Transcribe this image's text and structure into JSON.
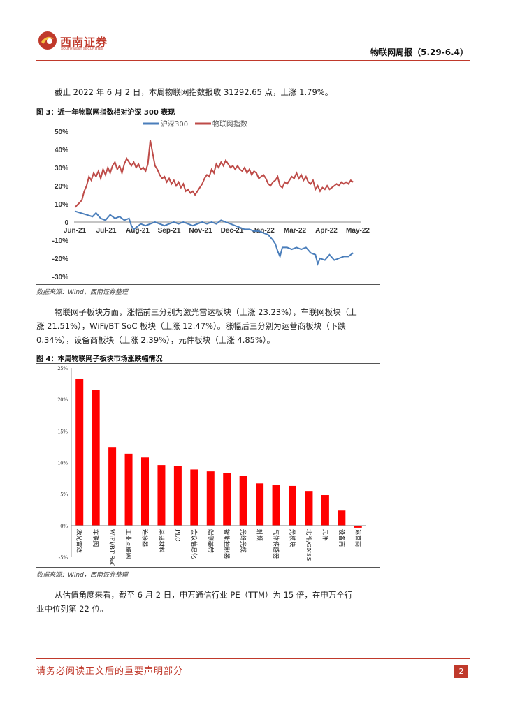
{
  "header": {
    "logo_cn": "西南证券",
    "logo_en": "SOUTHWEST SECURITIES",
    "report_title": "物联网周报（5.29-6.4）"
  },
  "body": {
    "para1": "截止 2022 年 6 月 2 日，本周物联网指数报收 31292.65 点，上涨 1.79%。",
    "fig3_title": "图 3：近一年物联网指数相对沪深 300 表现",
    "fig3_source": "数据来源：Wind，西南证券整理",
    "para2_line1": "物联网子板块方面，涨幅前三分别为激光雷达板块（上涨 23.23%），车联网板块（上",
    "para2_line2": "涨 21.51%），WiFi/BT SoC 板块（上涨 12.47%）。涨幅后三分别为运营商板块（下跌",
    "para2_line3": "0.34%），设备商板块（上涨 2.39%），元件板块（上涨 4.85%）。",
    "fig4_title": "图 4：本周物联网子板块市场涨跌幅情况",
    "fig4_source": "数据来源：Wind，西南证券整理",
    "para3_line1": "从估值角度来看，截至 6 月 2 日，申万通信行业 PE（TTM）为 15 倍，在申万全行",
    "para3_line2": "业中位列第 22 位。"
  },
  "footer": {
    "notice": "请务必阅读正文后的重要声明部分",
    "page_number": "2"
  },
  "colors": {
    "brand_red": "#c0392b",
    "hs300_blue": "#4a7ebb",
    "iot_red": "#be4b48",
    "bar_red": "#ff0000"
  },
  "chart_data": [
    {
      "type": "line",
      "title": "近一年物联网指数相对沪深 300 表现",
      "categories": [
        "Jun-21",
        "Jul-21",
        "Aug-21",
        "Sep-21",
        "Nov-21",
        "Dec-21",
        "Jan-22",
        "Mar-22",
        "Apr-22",
        "May-22"
      ],
      "y_ticks": [
        "50%",
        "40%",
        "30%",
        "20%",
        "10%",
        "0",
        "-10%",
        "-20%",
        "-30%"
      ],
      "ylim": [
        -30,
        50
      ],
      "x_max": 240,
      "series": [
        {
          "name": "沪深300",
          "color": "#4a7ebb",
          "points": [
            [
              0,
              6
            ],
            [
              5,
              5
            ],
            [
              10,
              4
            ],
            [
              15,
              3
            ],
            [
              18,
              5
            ],
            [
              22,
              2
            ],
            [
              26,
              1
            ],
            [
              30,
              4
            ],
            [
              34,
              2
            ],
            [
              38,
              3
            ],
            [
              42,
              1
            ],
            [
              46,
              2
            ],
            [
              48,
              -2
            ],
            [
              50,
              -4
            ],
            [
              52,
              -3
            ],
            [
              56,
              -1
            ],
            [
              60,
              -2
            ],
            [
              64,
              -1
            ],
            [
              68,
              0
            ],
            [
              72,
              -1
            ],
            [
              76,
              -2
            ],
            [
              80,
              -1
            ],
            [
              84,
              0
            ],
            [
              88,
              -1
            ],
            [
              92,
              0
            ],
            [
              96,
              -1
            ],
            [
              100,
              -2
            ],
            [
              104,
              -1
            ],
            [
              108,
              0
            ],
            [
              112,
              -1
            ],
            [
              116,
              0
            ],
            [
              120,
              -1
            ],
            [
              124,
              1
            ],
            [
              128,
              0
            ],
            [
              132,
              -1
            ],
            [
              136,
              -2
            ],
            [
              140,
              -3
            ],
            [
              144,
              -4
            ],
            [
              148,
              -4
            ],
            [
              152,
              -5
            ],
            [
              156,
              -5
            ],
            [
              160,
              -6
            ],
            [
              164,
              -7
            ],
            [
              168,
              -10
            ],
            [
              170,
              -12
            ],
            [
              172,
              -16
            ],
            [
              174,
              -19
            ],
            [
              176,
              -14
            ],
            [
              180,
              -14
            ],
            [
              184,
              -15
            ],
            [
              188,
              -14
            ],
            [
              192,
              -15
            ],
            [
              196,
              -14
            ],
            [
              200,
              -17
            ],
            [
              204,
              -18
            ],
            [
              206,
              -23
            ],
            [
              208,
              -20
            ],
            [
              212,
              -21
            ],
            [
              216,
              -18
            ],
            [
              220,
              -21
            ],
            [
              224,
              -20
            ],
            [
              228,
              -19
            ],
            [
              232,
              -19
            ],
            [
              236,
              -17
            ]
          ]
        },
        {
          "name": "物联网指数",
          "color": "#be4b48",
          "points": [
            [
              0,
              8
            ],
            [
              3,
              10
            ],
            [
              6,
              12
            ],
            [
              8,
              17
            ],
            [
              10,
              20
            ],
            [
              12,
              25
            ],
            [
              14,
              23
            ],
            [
              16,
              27
            ],
            [
              18,
              25
            ],
            [
              20,
              28
            ],
            [
              22,
              24
            ],
            [
              24,
              29
            ],
            [
              26,
              26
            ],
            [
              28,
              30
            ],
            [
              30,
              27
            ],
            [
              32,
              31
            ],
            [
              34,
              33
            ],
            [
              36,
              29
            ],
            [
              38,
              31
            ],
            [
              40,
              27
            ],
            [
              42,
              32
            ],
            [
              44,
              35
            ],
            [
              46,
              33
            ],
            [
              48,
              31
            ],
            [
              50,
              33
            ],
            [
              52,
              30
            ],
            [
              54,
              32
            ],
            [
              56,
              29
            ],
            [
              58,
              30
            ],
            [
              60,
              28
            ],
            [
              62,
              32
            ],
            [
              64,
              45
            ],
            [
              66,
              38
            ],
            [
              68,
              31
            ],
            [
              70,
              29
            ],
            [
              72,
              26
            ],
            [
              74,
              24
            ],
            [
              76,
              25
            ],
            [
              78,
              22
            ],
            [
              80,
              24
            ],
            [
              82,
              21
            ],
            [
              84,
              23
            ],
            [
              86,
              20
            ],
            [
              88,
              22
            ],
            [
              90,
              19
            ],
            [
              92,
              21
            ],
            [
              94,
              17
            ],
            [
              96,
              18
            ],
            [
              98,
              16
            ],
            [
              100,
              17
            ],
            [
              102,
              15
            ],
            [
              104,
              17
            ],
            [
              106,
              19
            ],
            [
              108,
              21
            ],
            [
              110,
              24
            ],
            [
              112,
              26
            ],
            [
              114,
              25
            ],
            [
              116,
              29
            ],
            [
              118,
              27
            ],
            [
              120,
              32
            ],
            [
              122,
              30
            ],
            [
              124,
              33
            ],
            [
              126,
              31
            ],
            [
              128,
              34
            ],
            [
              130,
              32
            ],
            [
              132,
              30
            ],
            [
              134,
              31
            ],
            [
              136,
              29
            ],
            [
              138,
              31
            ],
            [
              140,
              29
            ],
            [
              142,
              28
            ],
            [
              144,
              30
            ],
            [
              146,
              27
            ],
            [
              148,
              29
            ],
            [
              150,
              26
            ],
            [
              152,
              28
            ],
            [
              154,
              27
            ],
            [
              156,
              24
            ],
            [
              158,
              25
            ],
            [
              160,
              26
            ],
            [
              162,
              24
            ],
            [
              164,
              21
            ],
            [
              166,
              20
            ],
            [
              168,
              22
            ],
            [
              170,
              23
            ],
            [
              172,
              25
            ],
            [
              174,
              20
            ],
            [
              176,
              19
            ],
            [
              178,
              22
            ],
            [
              180,
              21
            ],
            [
              182,
              23
            ],
            [
              184,
              25
            ],
            [
              186,
              24
            ],
            [
              188,
              27
            ],
            [
              190,
              24
            ],
            [
              192,
              26
            ],
            [
              194,
              23
            ],
            [
              196,
              25
            ],
            [
              198,
              22
            ],
            [
              200,
              21
            ],
            [
              202,
              23
            ],
            [
              204,
              18
            ],
            [
              206,
              20
            ],
            [
              208,
              17
            ],
            [
              210,
              19
            ],
            [
              212,
              18
            ],
            [
              214,
              20
            ],
            [
              216,
              18
            ],
            [
              218,
              19
            ],
            [
              220,
              20
            ],
            [
              222,
              21
            ],
            [
              224,
              20
            ],
            [
              226,
              22
            ],
            [
              228,
              21
            ],
            [
              230,
              22
            ],
            [
              232,
              21
            ],
            [
              234,
              23
            ],
            [
              236,
              22
            ]
          ]
        }
      ]
    },
    {
      "type": "bar",
      "title": "本周物联网子板块市场涨跌幅情况",
      "categories": [
        "激光雷达",
        "车联网",
        "WiFi/BT SoC",
        "工业互联网",
        "连接器",
        "基础材料",
        "PLC",
        "会议信息化",
        "端侧基带",
        "智能控制器",
        "光纤光缆",
        "射频",
        "气体传感器",
        "光模块",
        "北斗/GNSS",
        "元件",
        "设备商",
        "运营商"
      ],
      "values": [
        23.23,
        21.51,
        12.47,
        11.4,
        10.8,
        9.6,
        9.4,
        8.9,
        8.6,
        8.3,
        7.9,
        6.7,
        6.4,
        6.3,
        5.5,
        4.85,
        2.39,
        -0.34
      ],
      "y_ticks": [
        "25%",
        "20%",
        "15%",
        "10%",
        "5%",
        "0%",
        "-5%"
      ],
      "ylim": [
        -5,
        25
      ],
      "color": "#ff0000"
    }
  ]
}
